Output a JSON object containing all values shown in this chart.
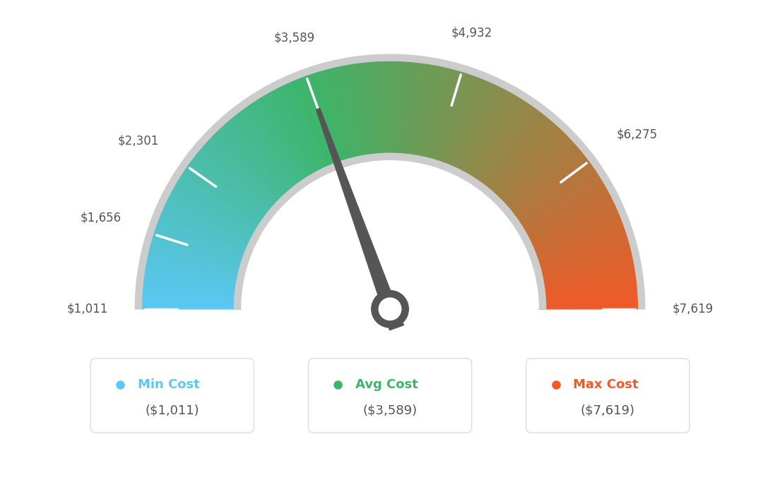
{
  "min_val": 1011,
  "max_val": 7619,
  "avg_val": 3589,
  "labels": [
    "$1,011",
    "$1,656",
    "$2,301",
    "$3,589",
    "$4,932",
    "$6,275",
    "$7,619"
  ],
  "label_values": [
    1011,
    1656,
    2301,
    3589,
    4932,
    6275,
    7619
  ],
  "min_cost_label": "Min Cost",
  "avg_cost_label": "Avg Cost",
  "max_cost_label": "Max Cost",
  "min_cost_val": "($1,011)",
  "avg_cost_val": "($3,589)",
  "max_cost_val": "($7,619)",
  "color_min": "#5BC8F5",
  "color_avg": "#3DB569",
  "color_max": "#F05A28",
  "bg_color": "#FFFFFF",
  "needle_val": 3589
}
